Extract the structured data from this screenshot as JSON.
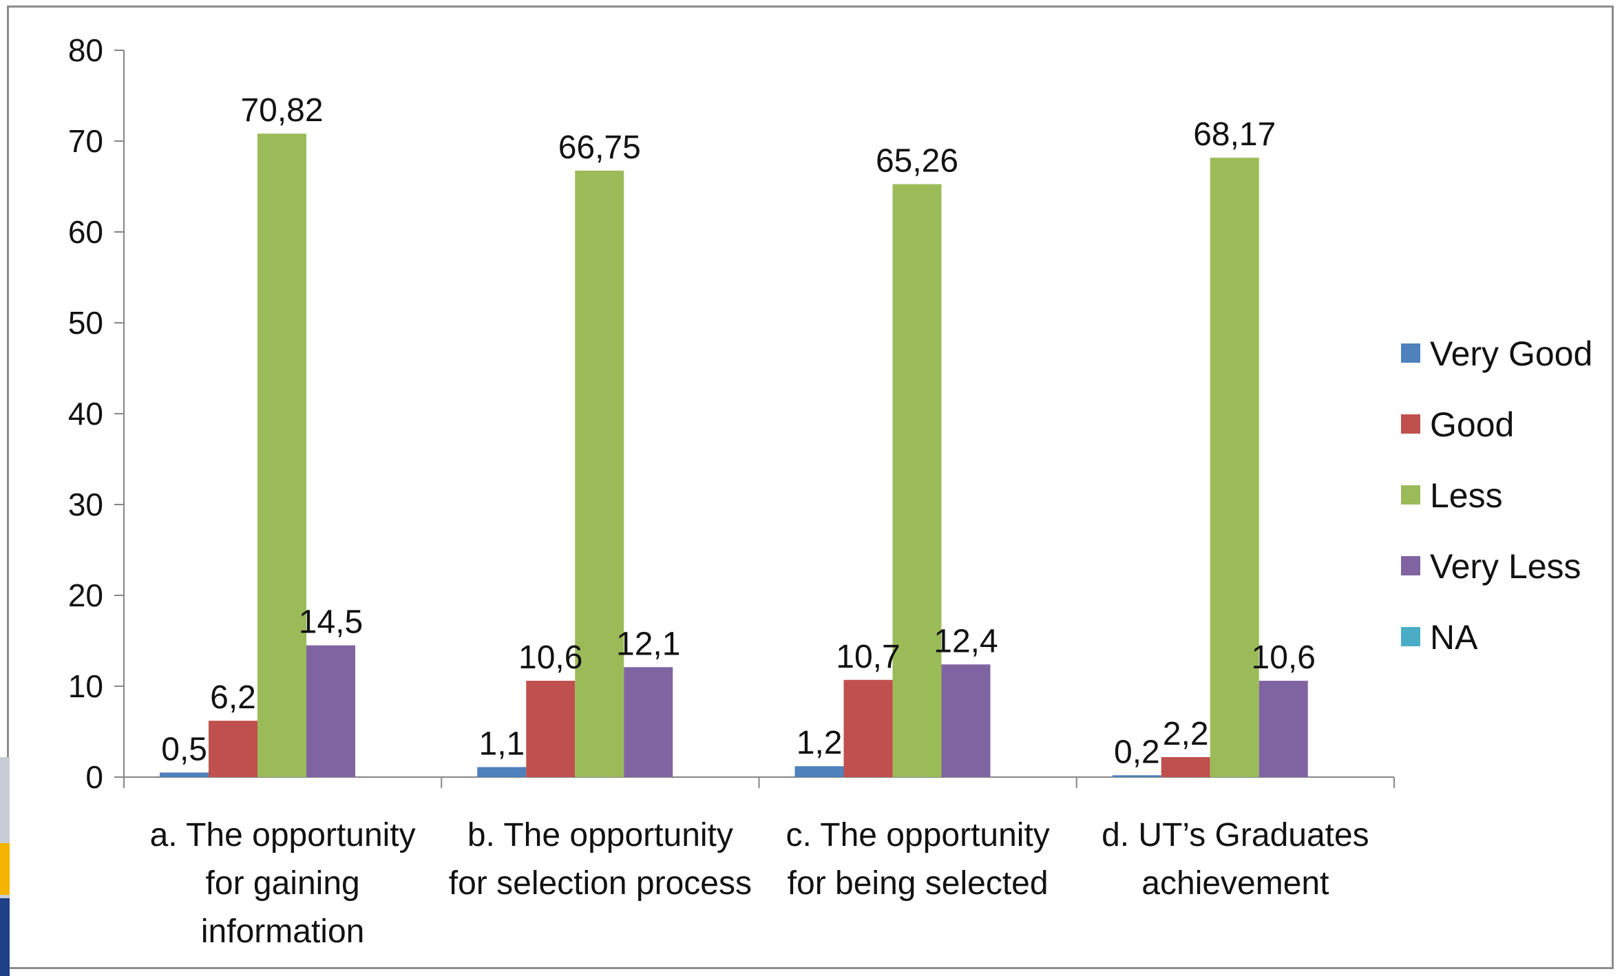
{
  "chart_data": {
    "type": "bar",
    "categories": [
      [
        "a. The opportunity",
        "for gaining",
        "information"
      ],
      [
        "b. The opportunity",
        "for selection process"
      ],
      [
        "c. The opportunity",
        "for being selected"
      ],
      [
        "d. UT’s Graduates",
        "achievement"
      ]
    ],
    "series": [
      {
        "name": "Very Good",
        "color": "#4F81BD",
        "values": [
          0.5,
          1.1,
          1.2,
          0.2
        ],
        "labels": [
          "0,5",
          "1,1",
          "1,2",
          "0,2"
        ]
      },
      {
        "name": "Good",
        "color": "#C0504D",
        "values": [
          6.2,
          10.6,
          10.7,
          2.2
        ],
        "labels": [
          "6,2",
          "10,6",
          "10,7",
          "2,2"
        ]
      },
      {
        "name": "Less",
        "color": "#9BBB59",
        "values": [
          70.82,
          66.75,
          65.26,
          68.17
        ],
        "labels": [
          "70,82",
          "66,75",
          "65,26",
          "68,17"
        ]
      },
      {
        "name": "Very Less",
        "color": "#8064A2",
        "values": [
          14.5,
          12.1,
          12.4,
          10.6
        ],
        "labels": [
          "14,5",
          "12,1",
          "12,4",
          "10,6"
        ]
      },
      {
        "name": "NA",
        "color": "#4BACC6",
        "values": [
          null,
          null,
          null,
          null
        ],
        "labels": []
      }
    ],
    "yticks": [
      "0",
      "10",
      "20",
      "30",
      "40",
      "50",
      "60",
      "70",
      "80"
    ],
    "ylim": [
      0,
      80
    ],
    "legend": "right",
    "grid": false,
    "title": "",
    "xlabel": "",
    "ylabel": ""
  }
}
